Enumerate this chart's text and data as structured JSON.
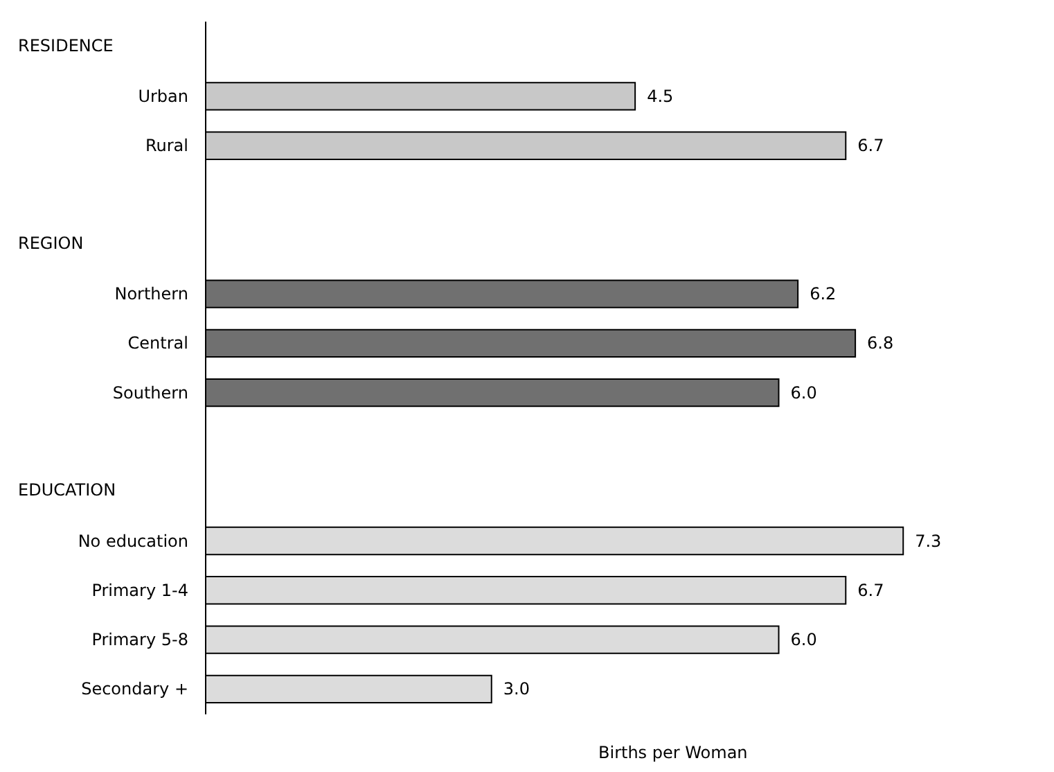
{
  "chart_data": {
    "type": "bar",
    "orientation": "horizontal",
    "xlabel": "Births per Woman",
    "categories": [
      null,
      "Urban",
      "Rural",
      null,
      null,
      "Northern",
      "Central",
      "Southern",
      null,
      null,
      "No education",
      "Primary 1-4",
      "Primary 5-8",
      "Secondary +"
    ],
    "values": [
      null,
      4.5,
      6.7,
      null,
      null,
      6.2,
      6.8,
      6.0,
      null,
      null,
      7.3,
      6.7,
      6.0,
      3.0
    ],
    "colors": [
      null,
      "#c8c8c8",
      "#c8c8c8",
      null,
      null,
      "#707070",
      "#707070",
      "#707070",
      null,
      null,
      "#dcdcdc",
      "#dcdcdc",
      "#dcdcdc",
      "#dcdcdc"
    ],
    "annotations": [
      "RESIDENCE",
      "REGION",
      "EDUCATION"
    ],
    "value_labels": [
      null,
      "4.5",
      "6.7",
      null,
      null,
      "6.2",
      "6.8",
      "6.0",
      null,
      null,
      "7.3",
      "6.7",
      "6.0",
      "3.0"
    ]
  }
}
